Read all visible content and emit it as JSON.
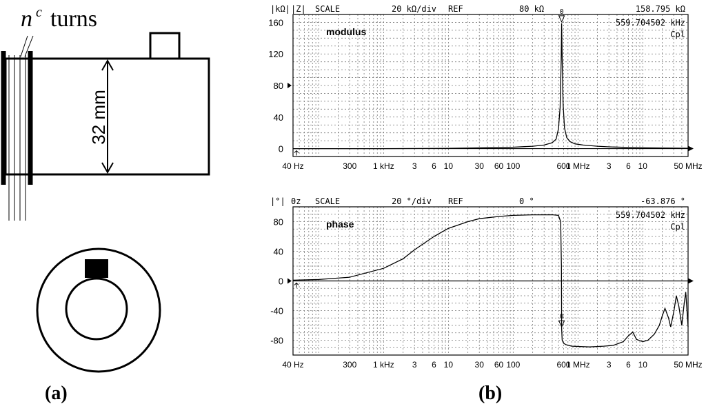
{
  "figure": {
    "panel_a_label": "(a)",
    "panel_b_label": "(b)"
  },
  "coil": {
    "turns_symbol": "n",
    "turns_superscript": "c",
    "turns_word": "turns",
    "dimension_label": "32 mm"
  },
  "chart_data": [
    {
      "type": "line",
      "title": "modulus",
      "header": {
        "unit": "|kΩ|",
        "param": "|Z|",
        "scale_label": "SCALE",
        "scale_value": "20 kΩ/div",
        "ref_label": "REF",
        "ref_value": "80 kΩ",
        "marker_value": "158.795 kΩ",
        "marker_freq": "559.704502 kHz",
        "mode": "Cpl",
        "marker_id": "0"
      },
      "x_axis": {
        "scale": "log",
        "range": [
          40,
          50000000
        ],
        "tick_labels": [
          "40 Hz",
          "300",
          "1 kHz",
          "3",
          "6",
          "10",
          "30",
          "60",
          "100",
          "600",
          "1 MHz",
          "3",
          "6",
          "10",
          "50 MHz"
        ],
        "tick_values": [
          40,
          300,
          1000,
          3000,
          6000,
          10000,
          30000,
          60000,
          100000,
          600000,
          1000000,
          3000000,
          6000000,
          10000000,
          50000000
        ]
      },
      "y_axis": {
        "range": [
          -10,
          170
        ],
        "tick_labels": [
          "160",
          "120",
          "80",
          "40",
          "0"
        ],
        "tick_values": [
          160,
          120,
          80,
          40,
          0
        ],
        "ref_value": 80
      },
      "series": [
        {
          "x": [
            40,
            1000,
            10000,
            50000,
            100000,
            200000,
            300000,
            400000,
            460000,
            500000,
            530000,
            550000,
            559704,
            570000,
            590000,
            620000,
            670000,
            750000,
            900000,
            1200000,
            2000000,
            3000000,
            5000000,
            10000000,
            50000000
          ],
          "y": [
            0,
            0,
            0.3,
            1.2,
            1.8,
            3.0,
            4.5,
            7.5,
            12,
            25,
            52,
            110,
            158.8,
            115,
            55,
            26,
            14,
            9,
            6,
            4.5,
            3.0,
            2.2,
            1.6,
            1.0,
            0.5
          ]
        }
      ]
    },
    {
      "type": "line",
      "title": "phase",
      "header": {
        "unit": "|°|",
        "param": "θz",
        "scale_label": "SCALE",
        "scale_value": "20 °/div",
        "ref_label": "REF",
        "ref_value": "0 °",
        "marker_value": "-63.876 °",
        "marker_freq": "559.704502 kHz",
        "mode": "Cpl",
        "marker_id": "0"
      },
      "x_axis": {
        "scale": "log",
        "range": [
          40,
          50000000
        ],
        "tick_labels": [
          "40 Hz",
          "300",
          "1 kHz",
          "3",
          "6",
          "10",
          "30",
          "60",
          "100",
          "600",
          "1 MHz",
          "3",
          "6",
          "10",
          "50 MHz"
        ],
        "tick_values": [
          40,
          300,
          1000,
          3000,
          6000,
          10000,
          30000,
          60000,
          100000,
          600000,
          1000000,
          3000000,
          6000000,
          10000000,
          50000000
        ]
      },
      "y_axis": {
        "range": [
          -100,
          100
        ],
        "tick_labels": [
          "80",
          "40",
          "0",
          "-40",
          "-80"
        ],
        "tick_values": [
          80,
          40,
          0,
          -40,
          -80
        ],
        "ref_value": 0
      },
      "series": [
        {
          "x": [
            40,
            100,
            300,
            1000,
            2000,
            3000,
            6000,
            10000,
            20000,
            30000,
            60000,
            100000,
            200000,
            400000,
            500000,
            540000,
            555000,
            559704,
            570000,
            600000,
            650000,
            800000,
            1500000,
            2500000,
            3500000,
            5000000,
            6000000,
            7000000,
            8000000,
            10000000,
            12000000,
            15000000,
            18000000,
            20000000,
            22000000,
            25000000,
            27000000,
            30000000,
            33000000,
            36000000,
            40000000,
            43000000,
            46000000,
            50000000
          ],
          "y": [
            1,
            2,
            5,
            17,
            30,
            42,
            60,
            71,
            80,
            84,
            87,
            88.5,
            89.2,
            89.3,
            88.5,
            80,
            20,
            -63.9,
            -80,
            -84,
            -86,
            -88,
            -89,
            -88,
            -87,
            -82,
            -74,
            -69,
            -79,
            -82,
            -80,
            -72,
            -60,
            -47,
            -37,
            -50,
            -62,
            -42,
            -20,
            -34,
            -60,
            -35,
            -15,
            -62
          ]
        }
      ]
    }
  ]
}
